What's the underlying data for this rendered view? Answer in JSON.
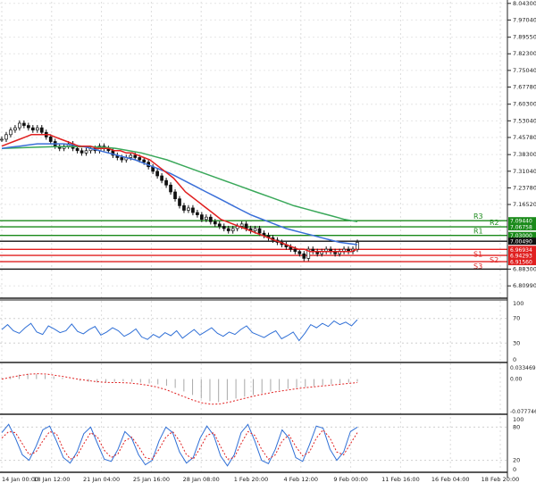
{
  "chart_data": {
    "type": "line",
    "title": "",
    "main": {
      "ylim": [
        6.76,
        8.05
      ],
      "y_ticks": [
        "8.04300",
        "7.97040",
        "7.89550",
        "7.82300",
        "7.75040",
        "7.67780",
        "7.60300",
        "7.53040",
        "7.45780",
        "7.38300",
        "7.31040",
        "7.23780",
        "7.16520",
        "7.09440",
        "7.06758",
        "7.03000",
        "7.00490",
        "6.96934",
        "6.94293",
        "6.91560",
        "6.88300",
        "6.80990"
      ],
      "x_ticks": [
        "14 Jan 00:00",
        "18 Jan 12:00",
        "21 Jan 04:00",
        "25 Jan 16:00",
        "28 Jan 08:00",
        "1 Feb 20:00",
        "4 Feb 12:00",
        "9 Feb 00:00",
        "11 Feb 16:00",
        "16 Feb 04:00",
        "18 Feb 20:00"
      ],
      "levels": [
        {
          "label": "R3",
          "value": 7.0944,
          "color": "#1a8a1a",
          "tag": "7.09440"
        },
        {
          "label": "R2",
          "value": 7.06758,
          "color": "#1a8a1a",
          "tag": "7.06758"
        },
        {
          "label": "R1",
          "value": 7.03,
          "color": "#1a8a1a",
          "tag": "7.03000"
        },
        {
          "label": "",
          "value": 7.0049,
          "color": "#111111",
          "tag": "7.00490"
        },
        {
          "label": "S1",
          "value": 6.96934,
          "color": "#e02020",
          "tag": "6.96934"
        },
        {
          "label": "S2",
          "value": 6.94293,
          "color": "#e02020",
          "tag": "6.94293"
        },
        {
          "label": "S3",
          "value": 6.9156,
          "color": "#e02020",
          "tag": "6.91560"
        },
        {
          "label": "",
          "value": 6.8832,
          "color": "#111111",
          "tag": ""
        }
      ],
      "close": [
        7.45,
        7.47,
        7.49,
        7.5,
        7.52,
        7.51,
        7.5,
        7.49,
        7.5,
        7.48,
        7.46,
        7.44,
        7.42,
        7.41,
        7.42,
        7.43,
        7.41,
        7.4,
        7.39,
        7.4,
        7.41,
        7.4,
        7.42,
        7.41,
        7.4,
        7.38,
        7.37,
        7.36,
        7.37,
        7.38,
        7.37,
        7.36,
        7.35,
        7.33,
        7.31,
        7.29,
        7.27,
        7.25,
        7.22,
        7.19,
        7.16,
        7.14,
        7.15,
        7.13,
        7.12,
        7.1,
        7.11,
        7.09,
        7.08,
        7.07,
        7.06,
        7.05,
        7.06,
        7.07,
        7.08,
        7.06,
        7.05,
        7.06,
        7.04,
        7.03,
        7.02,
        7.01,
        7.0,
        6.99,
        6.98,
        6.97,
        6.96,
        6.95,
        6.93,
        6.97,
        6.96,
        6.95,
        6.96,
        6.97,
        6.96,
        6.95,
        6.96,
        6.97,
        6.96,
        6.97,
        7.0
      ],
      "ma_red": [
        7.42,
        7.43,
        7.44,
        7.45,
        7.46,
        7.47,
        7.47,
        7.47,
        7.47,
        7.46,
        7.45,
        7.44,
        7.43,
        7.42,
        7.42,
        7.42,
        7.41,
        7.41,
        7.41,
        7.4,
        7.4,
        7.39,
        7.39,
        7.38,
        7.37,
        7.36,
        7.34,
        7.32,
        7.3,
        7.28,
        7.25,
        7.22,
        7.2,
        7.18,
        7.16,
        7.14,
        7.12,
        7.1,
        7.09,
        7.08,
        7.07,
        7.06,
        7.05,
        7.04,
        7.03,
        7.02,
        7.01,
        7.0,
        6.99,
        6.98,
        6.97,
        6.97,
        6.96,
        6.96,
        6.96,
        6.96,
        6.96,
        6.96,
        6.96,
        6.96,
        6.97
      ],
      "ma_blue": [
        7.41,
        7.415,
        7.42,
        7.425,
        7.43,
        7.43,
        7.43,
        7.43,
        7.425,
        7.42,
        7.41,
        7.4,
        7.39,
        7.38,
        7.37,
        7.36,
        7.345,
        7.33,
        7.315,
        7.3,
        7.28,
        7.26,
        7.24,
        7.22,
        7.2,
        7.18,
        7.16,
        7.14,
        7.12,
        7.105,
        7.09,
        7.075,
        7.06,
        7.05,
        7.04,
        7.03,
        7.02,
        7.01,
        7.0,
        6.995,
        6.99
      ],
      "ma_green": [
        7.41,
        7.412,
        7.414,
        7.416,
        7.417,
        7.418,
        7.418,
        7.417,
        7.415,
        7.41,
        7.4,
        7.39,
        7.375,
        7.36,
        7.34,
        7.32,
        7.3,
        7.28,
        7.26,
        7.24,
        7.22,
        7.2,
        7.18,
        7.16,
        7.145,
        7.13,
        7.115,
        7.1,
        7.09
      ]
    },
    "rsi": {
      "y_ticks": [
        "100",
        "70",
        "30",
        "0"
      ],
      "ylim": [
        0,
        100
      ],
      "values": [
        52,
        60,
        50,
        46,
        55,
        62,
        48,
        44,
        58,
        53,
        47,
        50,
        61,
        49,
        45,
        52,
        57,
        43,
        48,
        55,
        50,
        41,
        46,
        53,
        40,
        36,
        44,
        39,
        47,
        42,
        50,
        38,
        45,
        52,
        43,
        49,
        55,
        46,
        41,
        48,
        44,
        52,
        58,
        47,
        43,
        39,
        45,
        50,
        37,
        42,
        48,
        34,
        46,
        60,
        55,
        62,
        57,
        66,
        60,
        64,
        58,
        68
      ]
    },
    "macd": {
      "y_ticks": [
        "0.033469",
        "0.00",
        "-0.077746"
      ],
      "ylim": [
        -0.0777,
        0.0335
      ],
      "hist": [
        0.002,
        0.006,
        0.01,
        0.012,
        0.011,
        0.009,
        0.006,
        0.003,
        0.0,
        -0.004,
        -0.006,
        -0.008,
        -0.007,
        -0.006,
        -0.005,
        -0.006,
        -0.008,
        -0.01,
        -0.012,
        -0.015,
        -0.02,
        -0.028,
        -0.036,
        -0.044,
        -0.05,
        -0.052,
        -0.048,
        -0.044,
        -0.04,
        -0.036,
        -0.032,
        -0.028,
        -0.025,
        -0.022,
        -0.02,
        -0.018,
        -0.016,
        -0.014,
        -0.012,
        -0.01,
        -0.008,
        -0.006
      ],
      "signal": [
        0.0,
        0.004,
        0.008,
        0.011,
        0.012,
        0.011,
        0.008,
        0.005,
        0.001,
        -0.002,
        -0.005,
        -0.007,
        -0.008,
        -0.008,
        -0.009,
        -0.011,
        -0.014,
        -0.018,
        -0.024,
        -0.032,
        -0.04,
        -0.048,
        -0.054,
        -0.057,
        -0.056,
        -0.052,
        -0.047,
        -0.042,
        -0.037,
        -0.033,
        -0.029,
        -0.026,
        -0.023,
        -0.02,
        -0.018,
        -0.016,
        -0.014,
        -0.012,
        -0.01,
        -0.008
      ]
    },
    "stoch": {
      "y_ticks": [
        "100",
        "80",
        "20",
        "0"
      ],
      "ylim": [
        0,
        100
      ],
      "k": [
        70,
        85,
        60,
        30,
        20,
        45,
        75,
        82,
        55,
        25,
        15,
        35,
        68,
        80,
        50,
        22,
        18,
        40,
        72,
        60,
        30,
        12,
        20,
        55,
        80,
        70,
        35,
        15,
        25,
        60,
        82,
        65,
        28,
        10,
        30,
        70,
        85,
        55,
        20,
        14,
        40,
        75,
        60,
        25,
        18,
        48,
        82,
        78,
        40,
        20,
        35,
        72,
        80
      ],
      "d": [
        60,
        72,
        70,
        50,
        30,
        35,
        55,
        72,
        68,
        40,
        22,
        28,
        50,
        70,
        62,
        38,
        25,
        32,
        55,
        62,
        45,
        25,
        22,
        40,
        62,
        72,
        55,
        30,
        22,
        42,
        65,
        70,
        45,
        22,
        25,
        50,
        72,
        65,
        40,
        22,
        30,
        55,
        66,
        45,
        28,
        35,
        60,
        75,
        60,
        35,
        30,
        50,
        70
      ]
    }
  }
}
